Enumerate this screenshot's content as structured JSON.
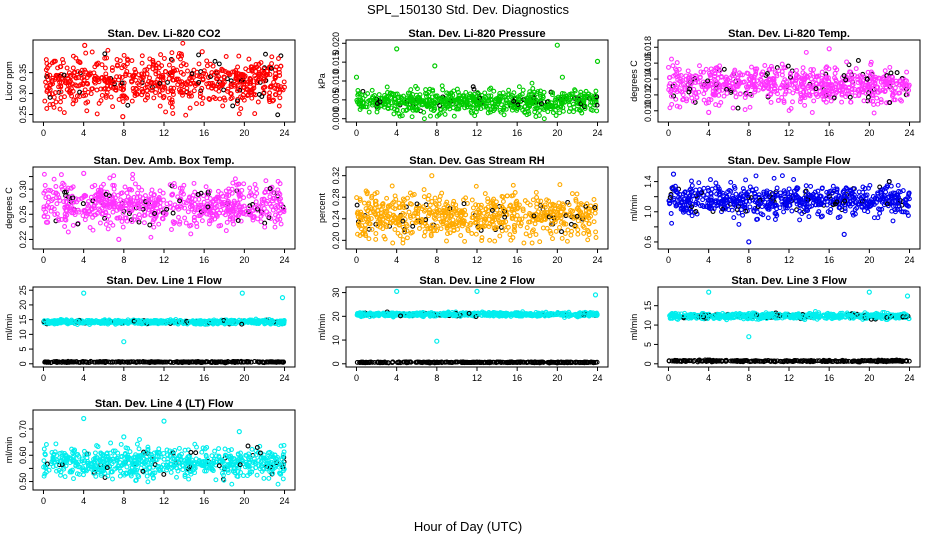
{
  "figure": {
    "title": "SPL_150130  Std. Dev. Diagnostics",
    "xlabel": "Hour of Day (UTC)"
  },
  "chart_data": [
    {
      "type": "scatter",
      "title": "Stan. Dev. Li-820 CO2",
      "ylabel": "Licor ppm",
      "color": "#ff0000",
      "xlim": [
        0,
        24
      ],
      "ylim": [
        0.24,
        0.42
      ],
      "xticks": [
        0,
        4,
        8,
        12,
        16,
        20,
        24
      ],
      "yticks": [
        0.25,
        0.3,
        0.35
      ],
      "yticklabels": [
        "0.25",
        "0.30",
        "0.35"
      ],
      "series": [
        {
          "count": 700,
          "mean": 0.33,
          "spread": 0.03,
          "min": 0.24,
          "max": 0.42
        }
      ],
      "outliers": [
        {
          "x": 4.1,
          "y": 0.415
        },
        {
          "x": 15.8,
          "y": 0.4
        },
        {
          "x": 7.9,
          "y": 0.245
        }
      ]
    },
    {
      "type": "scatter",
      "title": "Stan. Dev. Li-820 Pressure",
      "ylabel": "kPa",
      "color": "#00cc00",
      "xlim": [
        0,
        24
      ],
      "ylim": [
        0,
        0.02
      ],
      "xticks": [
        0,
        4,
        8,
        12,
        16,
        20,
        24
      ],
      "yticks": [
        0,
        0.005,
        0.01,
        0.015,
        0.02
      ],
      "yticklabels": [
        "0.000",
        "0.005",
        "0.010",
        "0.015",
        "0.020"
      ],
      "series": [
        {
          "count": 700,
          "mean": 0.0045,
          "spread": 0.0015,
          "min": 0.0,
          "max": 0.02
        }
      ],
      "outliers": [
        {
          "x": 4.0,
          "y": 0.0185
        },
        {
          "x": 20.0,
          "y": 0.0195
        },
        {
          "x": 24.0,
          "y": 0.0152
        },
        {
          "x": 0.0,
          "y": 0.011
        },
        {
          "x": 7.8,
          "y": 0.014
        },
        {
          "x": 20.5,
          "y": 0.011
        }
      ]
    },
    {
      "type": "scatter",
      "title": "Stan. Dev. Li-820 Temp.",
      "ylabel": "degrees C",
      "color": "#ff33ff",
      "xlim": [
        0,
        24
      ],
      "ylim": [
        0.009,
        0.0185
      ],
      "xticks": [
        0,
        4,
        8,
        12,
        16,
        20,
        24
      ],
      "yticks": [
        0.01,
        0.012,
        0.014,
        0.016,
        0.018
      ],
      "yticklabels": [
        "0.010",
        "0.012",
        "0.014",
        "0.016",
        "0.018"
      ],
      "series": [
        {
          "count": 700,
          "mean": 0.0132,
          "spread": 0.0012,
          "min": 0.0095,
          "max": 0.0182
        }
      ],
      "outliers": [
        {
          "x": 16.0,
          "y": 0.0178
        },
        {
          "x": 4.0,
          "y": 0.0098
        }
      ]
    },
    {
      "type": "scatter",
      "title": "Stan. Dev. Amb. Box Temp.",
      "ylabel": "degrees C",
      "color": "#ff33ff",
      "xlim": [
        0,
        24
      ],
      "ylim": [
        0.21,
        0.33
      ],
      "xticks": [
        0,
        4,
        8,
        12,
        16,
        20,
        24
      ],
      "yticks": [
        0.22,
        0.24,
        0.26,
        0.28,
        0.3,
        0.32
      ],
      "yticklabels": [
        "0.22",
        "",
        "0.26",
        "",
        "0.30",
        ""
      ],
      "series": [
        {
          "count": 700,
          "mean": 0.275,
          "spread": 0.018,
          "min": 0.215,
          "max": 0.325
        }
      ],
      "outliers": [
        {
          "x": 4.0,
          "y": 0.325
        },
        {
          "x": 7.5,
          "y": 0.22
        }
      ]
    },
    {
      "type": "scatter",
      "title": "Stan. Dev. Gas Stream RH",
      "ylabel": "percent",
      "color": "#ffaa00",
      "xlim": [
        0,
        24
      ],
      "ylim": [
        0.19,
        0.33
      ],
      "xticks": [
        0,
        4,
        8,
        12,
        16,
        20,
        24
      ],
      "yticks": [
        0.2,
        0.24,
        0.28,
        0.32
      ],
      "yticklabels": [
        "0.20",
        "0.24",
        "0.28",
        "0.32"
      ],
      "series": [
        {
          "count": 700,
          "mean": 0.245,
          "spread": 0.02,
          "min": 0.195,
          "max": 0.325
        }
      ],
      "outliers": [
        {
          "x": 7.5,
          "y": 0.32
        }
      ]
    },
    {
      "type": "scatter",
      "title": "Stan. Dev. Sample Flow",
      "ylabel": "ml/min",
      "color": "#0000ee",
      "xlim": [
        0,
        24
      ],
      "ylim": [
        0.55,
        1.55
      ],
      "xticks": [
        0,
        4,
        8,
        12,
        16,
        20,
        24
      ],
      "yticks": [
        0.6,
        0.8,
        1.0,
        1.2,
        1.4
      ],
      "yticklabels": [
        "0.6",
        "",
        "1.0",
        "",
        "1.4"
      ],
      "series": [
        {
          "count": 700,
          "mean": 1.15,
          "spread": 0.1,
          "min": 0.6,
          "max": 1.5
        }
      ],
      "outliers": [
        {
          "x": 8.0,
          "y": 0.6
        },
        {
          "x": 0.5,
          "y": 1.5
        },
        {
          "x": 17.5,
          "y": 0.7
        }
      ]
    },
    {
      "type": "scatter",
      "title": "Stan. Dev. Line 1 Flow",
      "ylabel": "ml/min",
      "color": "#00eeee",
      "xlim": [
        0,
        24
      ],
      "ylim": [
        0,
        25
      ],
      "xticks": [
        0,
        4,
        8,
        12,
        16,
        20,
        24
      ],
      "yticks": [
        0,
        5,
        10,
        15,
        20,
        25
      ],
      "yticklabels": [
        "0",
        "5",
        "10",
        "15",
        "20",
        "25"
      ],
      "series": [
        {
          "count": 700,
          "mean": 14.2,
          "spread": 0.35,
          "min": 13,
          "max": 15.2
        },
        {
          "count": 300,
          "mean": 0.6,
          "spread": 0.1,
          "min": 0.3,
          "max": 0.9
        }
      ],
      "outliers": [
        {
          "x": 4.0,
          "y": 24.0
        },
        {
          "x": 19.8,
          "y": 24.0
        },
        {
          "x": 23.8,
          "y": 22.5
        },
        {
          "x": 8.0,
          "y": 7.5
        }
      ]
    },
    {
      "type": "scatter",
      "title": "Stan. Dev. Line 2 Flow",
      "ylabel": "ml/min",
      "color": "#00eeee",
      "xlim": [
        0,
        24
      ],
      "ylim": [
        0,
        31
      ],
      "xticks": [
        0,
        4,
        8,
        12,
        16,
        20,
        24
      ],
      "yticks": [
        0,
        10,
        20,
        30
      ],
      "yticklabels": [
        "0",
        "10",
        "20",
        "30"
      ],
      "series": [
        {
          "count": 700,
          "mean": 20.8,
          "spread": 0.4,
          "min": 19.5,
          "max": 22
        },
        {
          "count": 300,
          "mean": 0.6,
          "spread": 0.1,
          "min": 0.3,
          "max": 0.9
        }
      ],
      "outliers": [
        {
          "x": 4.0,
          "y": 30.5
        },
        {
          "x": 12.0,
          "y": 30.5
        },
        {
          "x": 23.8,
          "y": 29.0
        },
        {
          "x": 8.0,
          "y": 9.5
        }
      ]
    },
    {
      "type": "scatter",
      "title": "Stan. Dev. Line 3 Flow",
      "ylabel": "ml/min",
      "color": "#00eeee",
      "xlim": [
        0,
        24
      ],
      "ylim": [
        0,
        19
      ],
      "xticks": [
        0,
        4,
        8,
        12,
        16,
        20,
        24
      ],
      "yticks": [
        0,
        5,
        10,
        15
      ],
      "yticklabels": [
        "0",
        "5",
        "10",
        "15"
      ],
      "series": [
        {
          "count": 700,
          "mean": 12.3,
          "spread": 0.35,
          "min": 11.2,
          "max": 13.5
        },
        {
          "count": 300,
          "mean": 0.7,
          "spread": 0.1,
          "min": 0.4,
          "max": 1.0
        }
      ],
      "outliers": [
        {
          "x": 4.0,
          "y": 18.5
        },
        {
          "x": 20.0,
          "y": 18.5
        },
        {
          "x": 23.8,
          "y": 17.5
        },
        {
          "x": 8.0,
          "y": 7.0
        }
      ]
    },
    {
      "type": "scatter",
      "title": "Stan. Dev. Line 4 (LT) Flow",
      "ylabel": "ml/min",
      "color": "#00eeee",
      "xlim": [
        0,
        24
      ],
      "ylim": [
        0.48,
        0.76
      ],
      "xticks": [
        0,
        4,
        8,
        12,
        16,
        20,
        24
      ],
      "yticks": [
        0.5,
        0.55,
        0.6,
        0.65,
        0.7
      ],
      "yticklabels": [
        "0.50",
        "",
        "0.60",
        "",
        "0.70"
      ],
      "series": [
        {
          "count": 700,
          "mean": 0.57,
          "spread": 0.03,
          "min": 0.49,
          "max": 0.75
        }
      ],
      "outliers": [
        {
          "x": 4.0,
          "y": 0.74
        },
        {
          "x": 12.0,
          "y": 0.73
        },
        {
          "x": 19.5,
          "y": 0.69
        },
        {
          "x": 8.0,
          "y": 0.67
        }
      ]
    }
  ]
}
